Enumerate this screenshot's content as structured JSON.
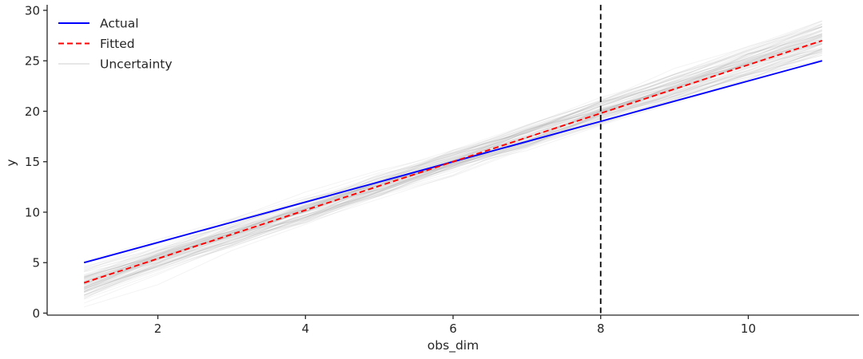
{
  "figure": {
    "background": "#ffffff",
    "text_color": "#262626",
    "spine_color": "#262626"
  },
  "chart_data": {
    "type": "line",
    "title": "",
    "xlabel": "obs_dim",
    "ylabel": "y",
    "x": [
      1,
      2,
      3,
      4,
      5,
      6,
      7,
      8,
      9,
      10,
      11
    ],
    "series": [
      {
        "name": "Actual",
        "color": "#0000ff",
        "style": "solid",
        "values": [
          5,
          7,
          9,
          11,
          13,
          15,
          17,
          19,
          21,
          23,
          25
        ]
      },
      {
        "name": "Fitted",
        "color": "#ff0000",
        "style": "dashed",
        "values": [
          3,
          5.4,
          7.8,
          10.2,
          12.6,
          15,
          17.4,
          19.8,
          22.2,
          24.6,
          27
        ]
      }
    ],
    "uncertainty": {
      "name": "Uncertainty",
      "color": "#888888",
      "legend_color": "#e7e7e7",
      "opacity": 0.1,
      "n_samples": 80,
      "seed": 11,
      "center_series_index": 1,
      "pivot_x": 6,
      "slope_sd": 0.16,
      "offset_sd": 0.5,
      "point_noise_sd": 0.3
    },
    "vline": {
      "x": 8,
      "color": "#000000",
      "style": "dashed"
    },
    "xlim": [
      0.5,
      11.5
    ],
    "ylim": [
      -0.2,
      30.55
    ],
    "xticks": [
      2,
      4,
      6,
      8,
      10
    ],
    "yticks": [
      0,
      5,
      10,
      15,
      20,
      25,
      30
    ],
    "grid": false,
    "legend": {
      "position": "upper-left",
      "frame": false,
      "entries": [
        {
          "label": "Actual"
        },
        {
          "label": "Fitted"
        },
        {
          "label": "Uncertainty"
        }
      ]
    }
  }
}
